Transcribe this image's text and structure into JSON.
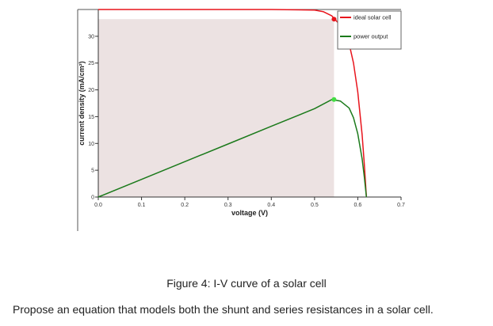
{
  "chart_data": {
    "type": "line",
    "xlabel": "voltage (V)",
    "ylabel": "current density (mA/cm²)",
    "xlim": [
      0,
      0.7
    ],
    "ylim": [
      0,
      35
    ],
    "x_ticks": [
      "0.0",
      "0.1",
      "0.2",
      "0.3",
      "0.4",
      "0.5",
      "0.6",
      "0.7"
    ],
    "y_ticks": [
      "0",
      "5",
      "10",
      "15",
      "20",
      "25",
      "30"
    ],
    "grid": false,
    "legend_position": "top-right",
    "series": [
      {
        "name": "ideal solar cell",
        "color": "#e8141c",
        "points": [
          [
            0,
            35
          ],
          [
            0.1,
            35
          ],
          [
            0.2,
            35
          ],
          [
            0.3,
            35
          ],
          [
            0.4,
            35
          ],
          [
            0.5,
            34.9
          ],
          [
            0.52,
            34.6
          ],
          [
            0.54,
            33.8
          ],
          [
            0.56,
            32.0
          ],
          [
            0.58,
            28.6
          ],
          [
            0.59,
            25.0
          ],
          [
            0.6,
            19.6
          ],
          [
            0.61,
            11.6
          ],
          [
            0.615,
            6.2
          ],
          [
            0.62,
            0
          ]
        ]
      },
      {
        "name": "power output",
        "color": "#1b7a1b",
        "points": [
          [
            0,
            0
          ],
          [
            0.1,
            3.3
          ],
          [
            0.2,
            6.6
          ],
          [
            0.3,
            9.9
          ],
          [
            0.4,
            13.2
          ],
          [
            0.5,
            16.5
          ],
          [
            0.54,
            18.2
          ],
          [
            0.56,
            17.9
          ],
          [
            0.58,
            16.6
          ],
          [
            0.59,
            14.8
          ],
          [
            0.6,
            11.8
          ],
          [
            0.61,
            7.1
          ],
          [
            0.615,
            3.8
          ],
          [
            0.62,
            0
          ]
        ]
      }
    ],
    "max_power_point": {
      "voltage": 0.545,
      "current_density": 33.2,
      "power": 18.2
    },
    "shaded_region": {
      "x": [
        0,
        0.545
      ],
      "y": [
        0,
        33.2
      ],
      "color": "#ece2e2"
    },
    "markers": [
      {
        "series": "ideal solar cell",
        "x": 0.545,
        "y": 33.2,
        "color": "#e8141c"
      },
      {
        "series": "power output",
        "x": 0.545,
        "y": 18.2,
        "color": "#44dd44"
      }
    ]
  },
  "caption": "Figure 4: I-V curve of a solar cell",
  "question": "Propose an equation that models both the shunt and series resistances in a solar cell."
}
